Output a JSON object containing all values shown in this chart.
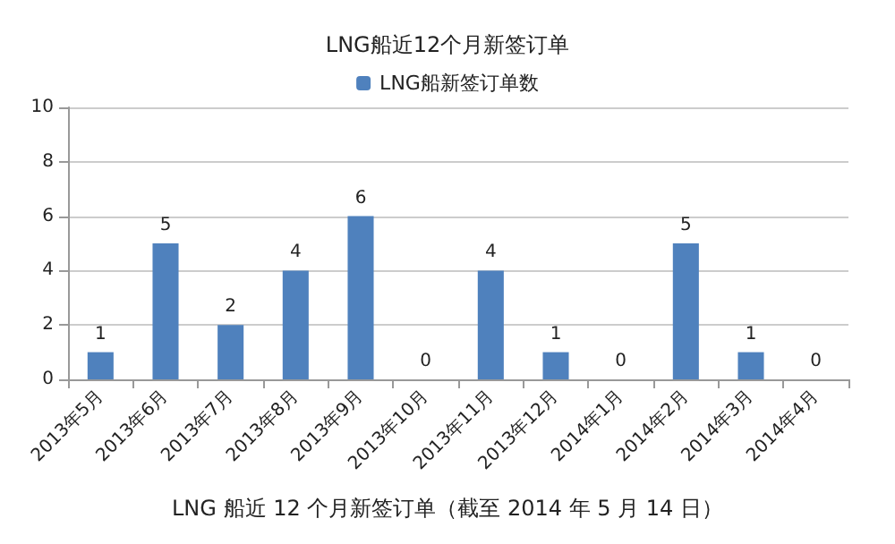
{
  "chart_data": {
    "type": "bar",
    "title": "LNG船近12个月新签订单",
    "categories": [
      "2013年5月",
      "2013年6月",
      "2013年7月",
      "2013年8月",
      "2013年9月",
      "2013年10月",
      "2013年11月",
      "2013年12月",
      "2014年1月",
      "2014年2月",
      "2014年3月",
      "2014年4月"
    ],
    "series": [
      {
        "name": "LNG船新签订单数",
        "color": "#4f81bd",
        "values": [
          1,
          5,
          2,
          4,
          6,
          0,
          4,
          1,
          0,
          5,
          1,
          0
        ]
      }
    ],
    "ylim": [
      0,
      10
    ],
    "yticks": [
      0,
      2,
      4,
      6,
      8,
      10
    ],
    "grid": "y",
    "legend": "top",
    "data_labels": true,
    "annotations": [
      "LNG 船近 12 个月新签订单（截至 2014 年 5 月 14 日）"
    ]
  }
}
